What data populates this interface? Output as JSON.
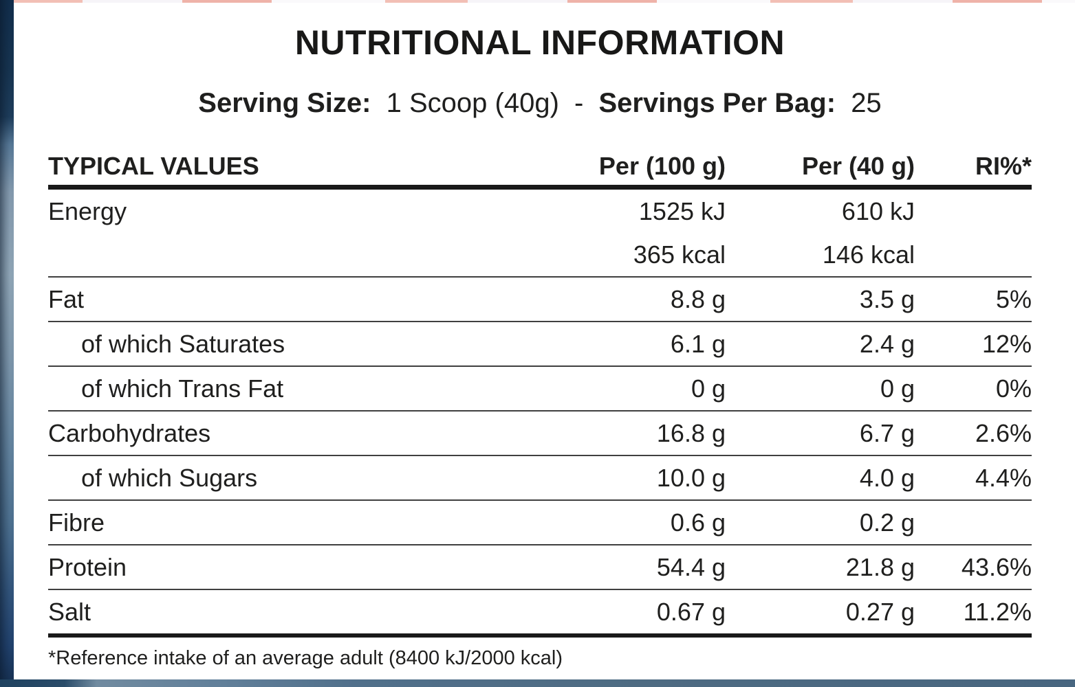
{
  "title": "NUTRITIONAL INFORMATION",
  "serving": {
    "size_label": "Serving Size:",
    "size_value": "1 Scoop (40g)",
    "separator": "-",
    "bag_label": "Servings Per Bag:",
    "bag_value": "25"
  },
  "table": {
    "headers": {
      "label": "TYPICAL VALUES",
      "per100": "Per (100 g)",
      "per40": "Per (40 g)",
      "ri": "RI%*"
    },
    "rows": [
      {
        "label": "Energy",
        "per100": "1525 kJ",
        "per40": "610 kJ",
        "ri": ""
      },
      {
        "label": "",
        "per100": "365 kcal",
        "per40": "146 kcal",
        "ri": ""
      },
      {
        "label": "Fat",
        "per100": "8.8 g",
        "per40": "3.5 g",
        "ri": "5%"
      },
      {
        "label": "of which Saturates",
        "per100": "6.1 g",
        "per40": "2.4 g",
        "ri": "12%"
      },
      {
        "label": "of which Trans Fat",
        "per100": "0 g",
        "per40": "0 g",
        "ri": "0%"
      },
      {
        "label": "Carbohydrates",
        "per100": "16.8 g",
        "per40": "6.7 g",
        "ri": "2.6%"
      },
      {
        "label": "of which Sugars",
        "per100": "10.0 g",
        "per40": "4.0 g",
        "ri": "4.4%"
      },
      {
        "label": "Fibre",
        "per100": "0.6 g",
        "per40": "0.2 g",
        "ri": ""
      },
      {
        "label": "Protein",
        "per100": "54.4 g",
        "per40": "21.8 g",
        "ri": "43.6%"
      },
      {
        "label": "Salt",
        "per100": "0.67 g",
        "per40": "0.27 g",
        "ri": "11.2%"
      }
    ]
  },
  "footnote": "*Reference intake of an average adult (8400 kJ/2000 kcal)",
  "colors": {
    "panel_bg": "#ffffff",
    "text": "#1f1f1e",
    "rule_thick": "#191919",
    "rule_thin": "#3f3f3f",
    "bag_edge_navy": "#16324f",
    "bag_edge_slate": "#4e6b82",
    "bag_edge_light_blue": "#8da3b4",
    "bag_top_pink": "#f2bfb5"
  }
}
